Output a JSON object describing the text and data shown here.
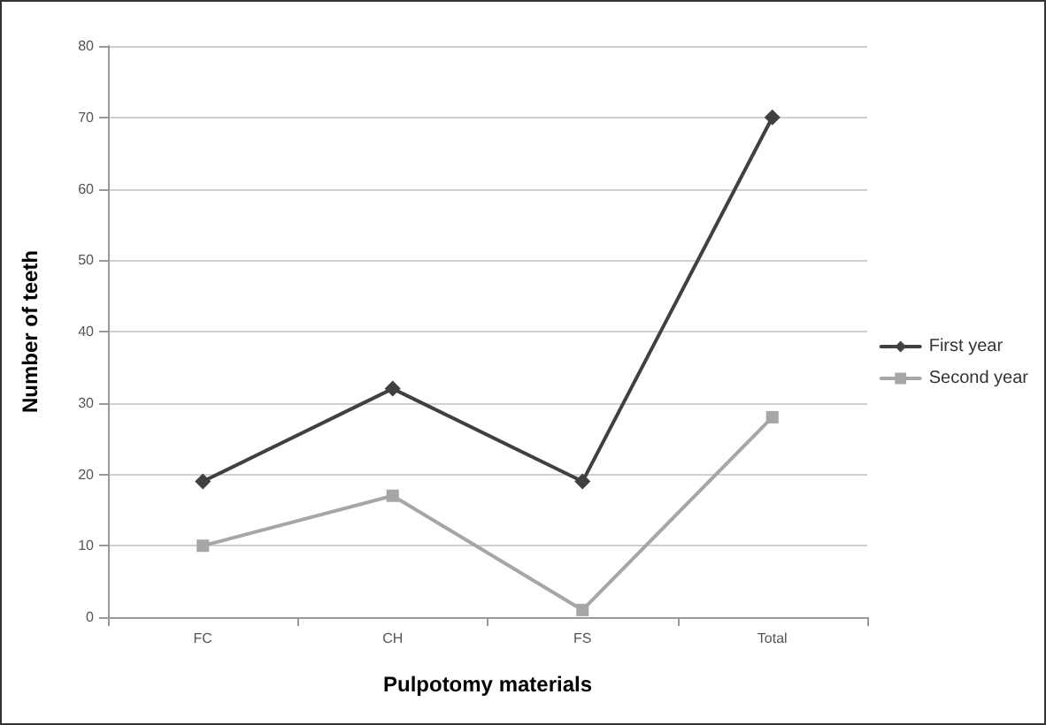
{
  "chart_data": {
    "type": "line",
    "xlabel": "Pulpotomy materials",
    "ylabel": "Number of teeth",
    "categories": [
      "FC",
      "CH",
      "FS",
      "Total"
    ],
    "series": [
      {
        "name": "First year",
        "color": "#404040",
        "marker": "diamond",
        "values": [
          19,
          32,
          19,
          70
        ]
      },
      {
        "name": "Second year",
        "color": "#a6a6a6",
        "marker": "square",
        "values": [
          10,
          17,
          1,
          28
        ]
      }
    ],
    "ylim": [
      0,
      80
    ],
    "yticks": [
      0,
      10,
      20,
      30,
      40,
      50,
      60,
      70,
      80
    ],
    "grid": "y",
    "legend": "right"
  }
}
